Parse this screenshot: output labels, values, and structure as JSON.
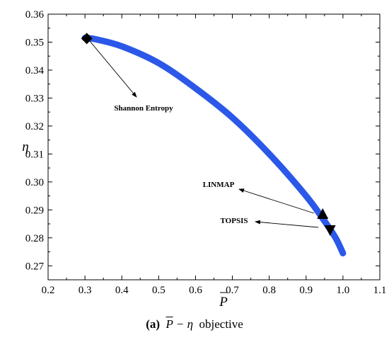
{
  "chart_data": {
    "type": "line",
    "title": "",
    "xlabel": "P",
    "ylabel": "η",
    "xlim": [
      0.2,
      1.1
    ],
    "ylim": [
      0.265,
      0.36
    ],
    "xticks": [
      "0.2",
      "0.3",
      "0.4",
      "0.5",
      "0.6",
      "0.7",
      "0.8",
      "0.9",
      "1.0",
      "1.1"
    ],
    "yticks": [
      "0.27",
      "0.28",
      "0.29",
      "0.30",
      "0.31",
      "0.32",
      "0.33",
      "0.34",
      "0.35",
      "0.36"
    ],
    "grid": false,
    "series": [
      {
        "color": "#2b58e8",
        "x": [
          0.3,
          0.33,
          0.4,
          0.5,
          0.6,
          0.7,
          0.8,
          0.9,
          0.95,
          0.98,
          1.0
        ],
        "y": [
          0.3515,
          0.351,
          0.3485,
          0.3425,
          0.3335,
          0.323,
          0.31,
          0.295,
          0.286,
          0.28,
          0.2745
        ]
      }
    ],
    "points": [
      {
        "name": "Shannon Entropy",
        "x": 0.305,
        "y": 0.3513,
        "marker": "diamond"
      },
      {
        "name": "LINMAP",
        "x": 0.945,
        "y": 0.2883,
        "marker": "triangle-up"
      },
      {
        "name": "TOPSIS",
        "x": 0.965,
        "y": 0.283,
        "marker": "triangle-down"
      }
    ],
    "annotations": [
      "Shannon Entropy",
      "LINMAP",
      "TOPSIS"
    ]
  },
  "caption": {
    "label": "(a)",
    "formula_symbol": "P",
    "formula_rest": " − η",
    "suffix": "objective"
  }
}
